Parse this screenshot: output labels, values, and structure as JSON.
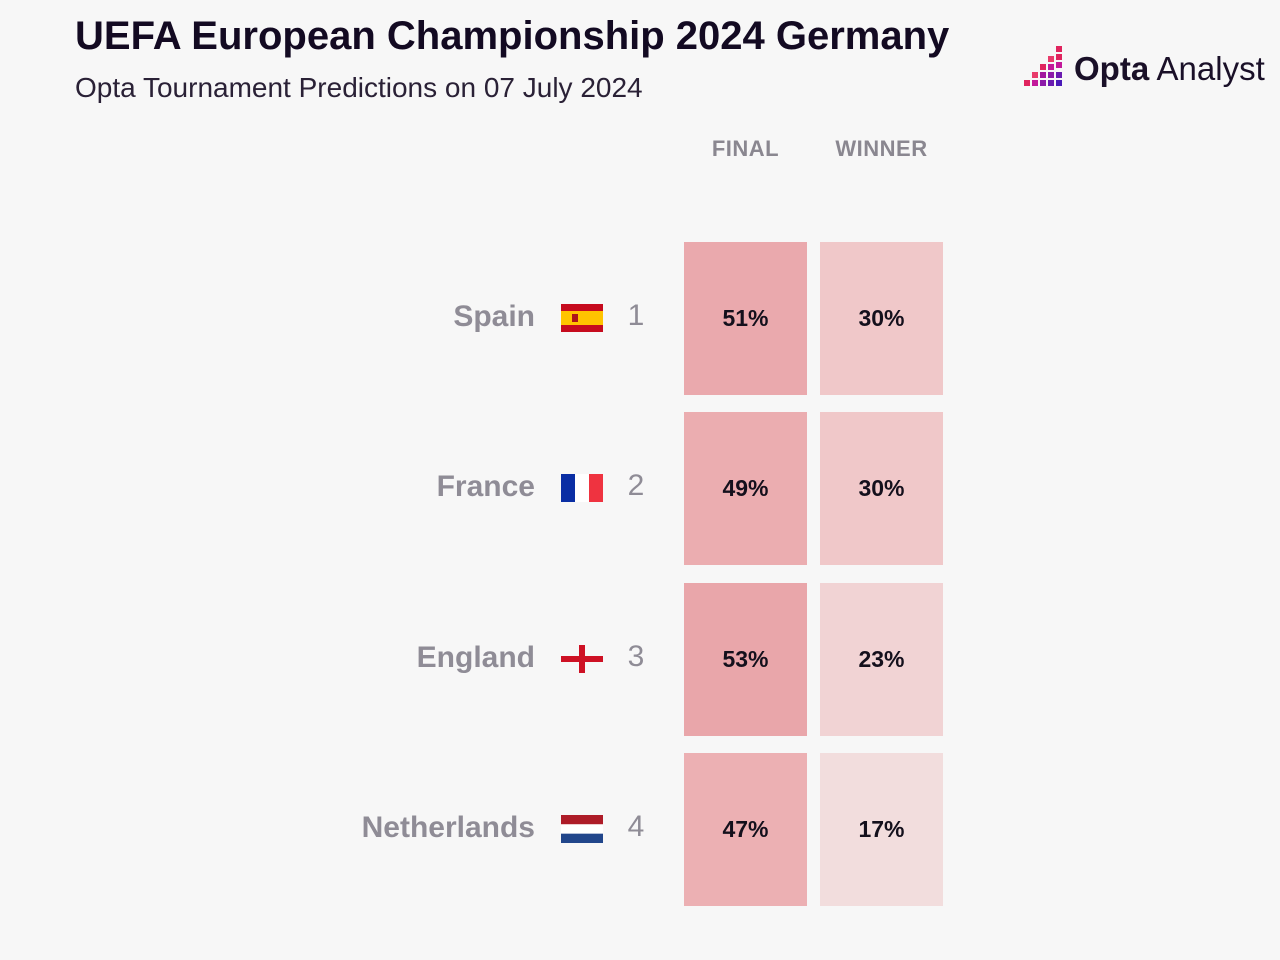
{
  "header": {
    "title": "UEFA European Championship 2024 Germany",
    "subtitle": "Opta Tournament Predictions on 07 July 2024",
    "logo_bold": "Opta",
    "logo_light": " Analyst"
  },
  "chart_data": {
    "type": "table",
    "columns": [
      "FINAL",
      "WINNER"
    ],
    "rows": [
      {
        "team": "Spain",
        "rank": "1",
        "final": "51%",
        "winner": "30%",
        "flag": "spain-flag"
      },
      {
        "team": "France",
        "rank": "2",
        "final": "49%",
        "winner": "30%",
        "flag": "france-flag"
      },
      {
        "team": "England",
        "rank": "3",
        "final": "53%",
        "winner": "23%",
        "flag": "england-flag"
      },
      {
        "team": "Netherlands",
        "rank": "4",
        "final": "47%",
        "winner": "17%",
        "flag": "netherlands-flag"
      }
    ],
    "colors": {
      "final_cell": "#eaa9ad",
      "winner_high": "#f0c8c9",
      "winner_mid": "#f1d3d4",
      "winner_low": "#f2dddd",
      "logo_accent": "#e0245e"
    }
  }
}
